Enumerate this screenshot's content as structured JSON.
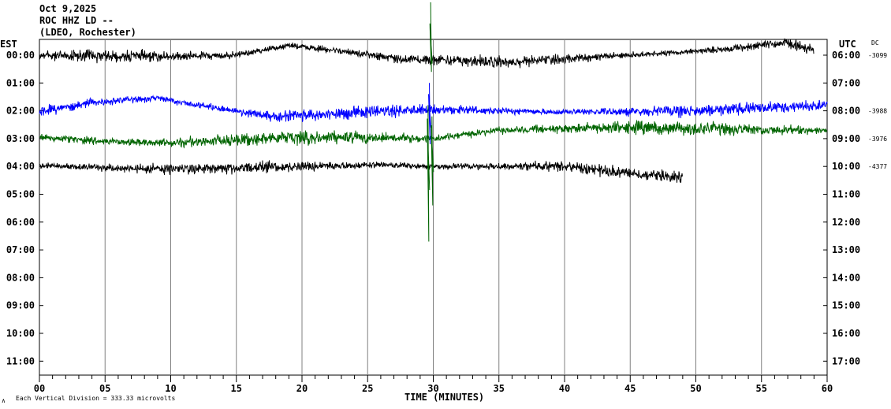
{
  "header": {
    "date": "Oct 9,2025",
    "station": "ROC HHZ LD --",
    "network": "(LDEO, Rochester)"
  },
  "left_axis_label": "EST",
  "right_axis_label": "UTC",
  "dc_label": "DC",
  "footer": {
    "corner_mark": "∧",
    "scale_note": "Each Vertical Division =  333.33 microvolts"
  },
  "colors": {
    "black": "#000000",
    "blue": "#0000ff",
    "green": "#006400",
    "grid": "#808080"
  },
  "chart_data": {
    "type": "line",
    "title": "",
    "xlabel": "TIME (MINUTES)",
    "xlim": [
      0,
      60
    ],
    "x_ticks": [
      "00",
      "05",
      "10",
      "15",
      "20",
      "25",
      "30",
      "35",
      "40",
      "45",
      "50",
      "55",
      "60"
    ],
    "est_rows": [
      "00:00",
      "01:00",
      "02:00",
      "03:00",
      "04:00",
      "05:00",
      "06:00",
      "07:00",
      "08:00",
      "09:00",
      "10:00",
      "11:00"
    ],
    "utc_rows": [
      "06:00",
      "07:00",
      "08:00",
      "09:00",
      "10:00",
      "11:00",
      "12:00",
      "13:00",
      "14:00",
      "15:00",
      "16:00",
      "17:00"
    ],
    "series": [
      {
        "row": "00:00",
        "color": "black",
        "end_minute": 59,
        "dc": "-3099",
        "noise": 0.22,
        "drift": [
          [
            0,
            0
          ],
          [
            10,
            0.05
          ],
          [
            15,
            0.0
          ],
          [
            19,
            -0.35
          ],
          [
            24,
            -0.1
          ],
          [
            28,
            0.15
          ],
          [
            36,
            0.25
          ],
          [
            45,
            0.0
          ],
          [
            52,
            -0.2
          ],
          [
            57,
            -0.45
          ],
          [
            59,
            -0.2
          ]
        ]
      },
      {
        "row": "02:00",
        "color": "blue",
        "end_minute": 60,
        "dc": "-3988",
        "noise": 0.24,
        "drift": [
          [
            0,
            0.05
          ],
          [
            4,
            -0.3
          ],
          [
            9,
            -0.45
          ],
          [
            12,
            -0.2
          ],
          [
            18,
            0.2
          ],
          [
            25,
            0.05
          ],
          [
            30,
            -0.05
          ],
          [
            40,
            0.05
          ],
          [
            50,
            0.0
          ],
          [
            55,
            -0.1
          ],
          [
            60,
            -0.2
          ]
        ]
      },
      {
        "row": "03:00",
        "color": "green",
        "end_minute": 60,
        "dc": "-3976",
        "noise": 0.26,
        "drift": [
          [
            0,
            -0.05
          ],
          [
            5,
            0.1
          ],
          [
            10,
            0.15
          ],
          [
            15,
            0.05
          ],
          [
            20,
            -0.05
          ],
          [
            30,
            0.0
          ],
          [
            35,
            -0.3
          ],
          [
            45,
            -0.4
          ],
          [
            55,
            -0.3
          ],
          [
            60,
            -0.3
          ]
        ]
      },
      {
        "row": "04:00",
        "color": "black",
        "end_minute": 49,
        "dc": "-4377",
        "noise": 0.22,
        "drift": [
          [
            0,
            -0.05
          ],
          [
            5,
            0.05
          ],
          [
            10,
            0.1
          ],
          [
            20,
            0.0
          ],
          [
            26,
            -0.05
          ],
          [
            30,
            0.0
          ],
          [
            40,
            0.0
          ],
          [
            46,
            0.3
          ],
          [
            49,
            0.4
          ]
        ]
      }
    ],
    "events": [
      {
        "row": "00:00",
        "minute": 29.8,
        "color": "green",
        "up_rows": 1.9,
        "down_rows": 0.6
      },
      {
        "row": "02:00",
        "minute": 29.7,
        "color": "blue",
        "up_rows": 1.0,
        "down_rows": 1.2
      },
      {
        "row": "03:00",
        "minute": 29.6,
        "color": "green",
        "up_rows": 1.2,
        "down_rows": 3.7
      },
      {
        "row": "03:00",
        "minute": 29.9,
        "color": "green",
        "up_rows": 0.8,
        "down_rows": 2.4
      }
    ]
  }
}
